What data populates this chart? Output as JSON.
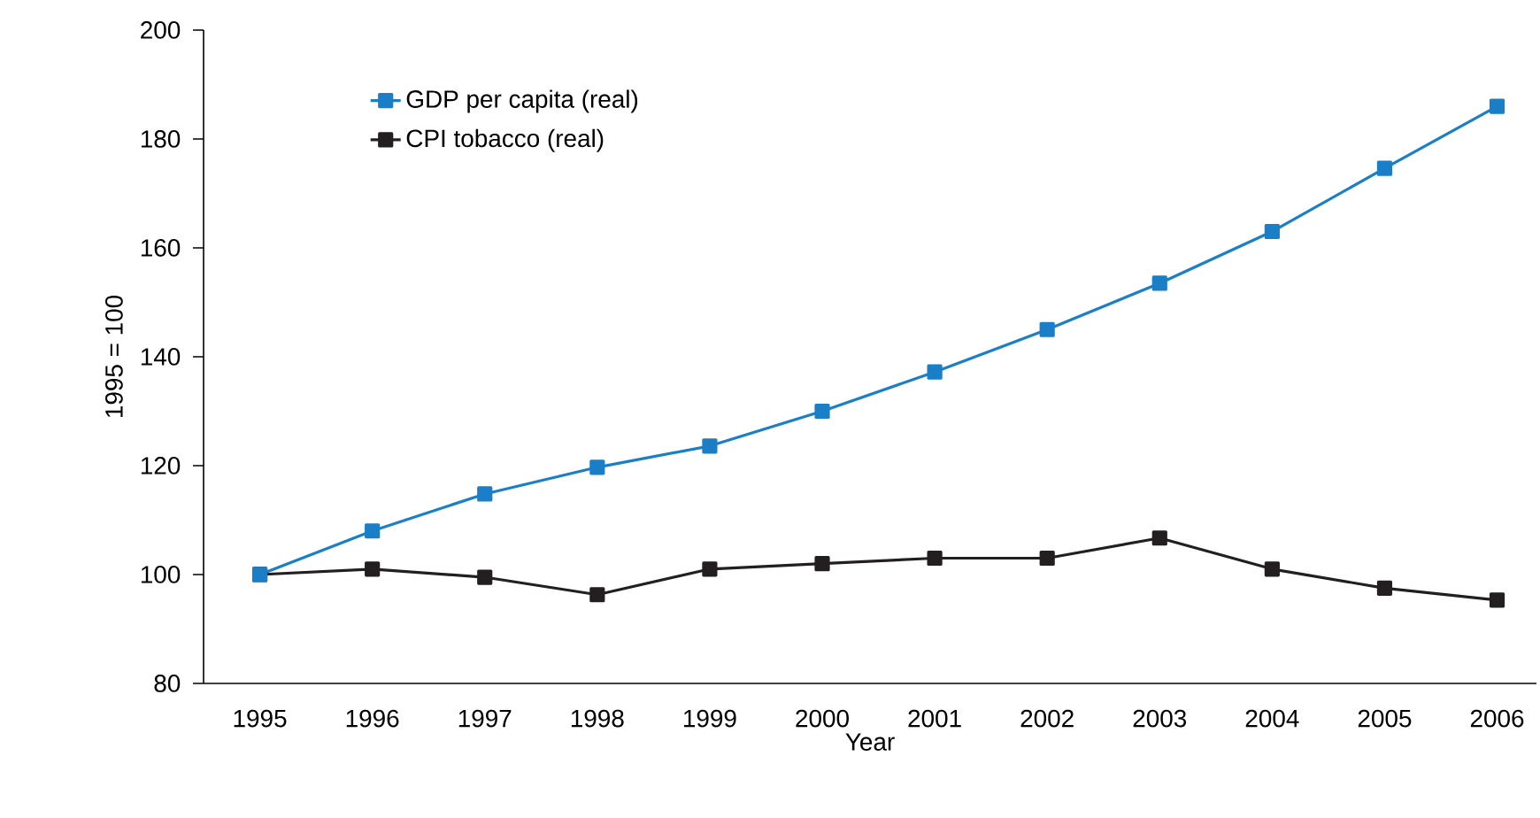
{
  "chart_data": {
    "type": "line",
    "xlabel": "Year",
    "ylabel": "1995 = 100",
    "categories": [
      "1995",
      "1996",
      "1997",
      "1998",
      "1999",
      "2000",
      "2001",
      "2002",
      "2003",
      "2004",
      "2005",
      "2006"
    ],
    "series": [
      {
        "name": "GDP per capita (real)",
        "color": "#1a7fc7",
        "values": [
          100,
          108,
          114.8,
          119.7,
          123.6,
          130,
          137.2,
          145,
          153.5,
          163,
          174.6,
          186
        ]
      },
      {
        "name": "CPI tobacco (real)",
        "color": "#231f20",
        "values": [
          100,
          101,
          99.5,
          96.3,
          101,
          102,
          103,
          103,
          106.7,
          101,
          97.5,
          95.3
        ]
      }
    ],
    "ylim": [
      80,
      200
    ],
    "yticks": [
      80,
      100,
      120,
      140,
      160,
      180,
      200
    ],
    "legend": "top left",
    "marker": "square",
    "line_style": "solid",
    "grid": false
  }
}
